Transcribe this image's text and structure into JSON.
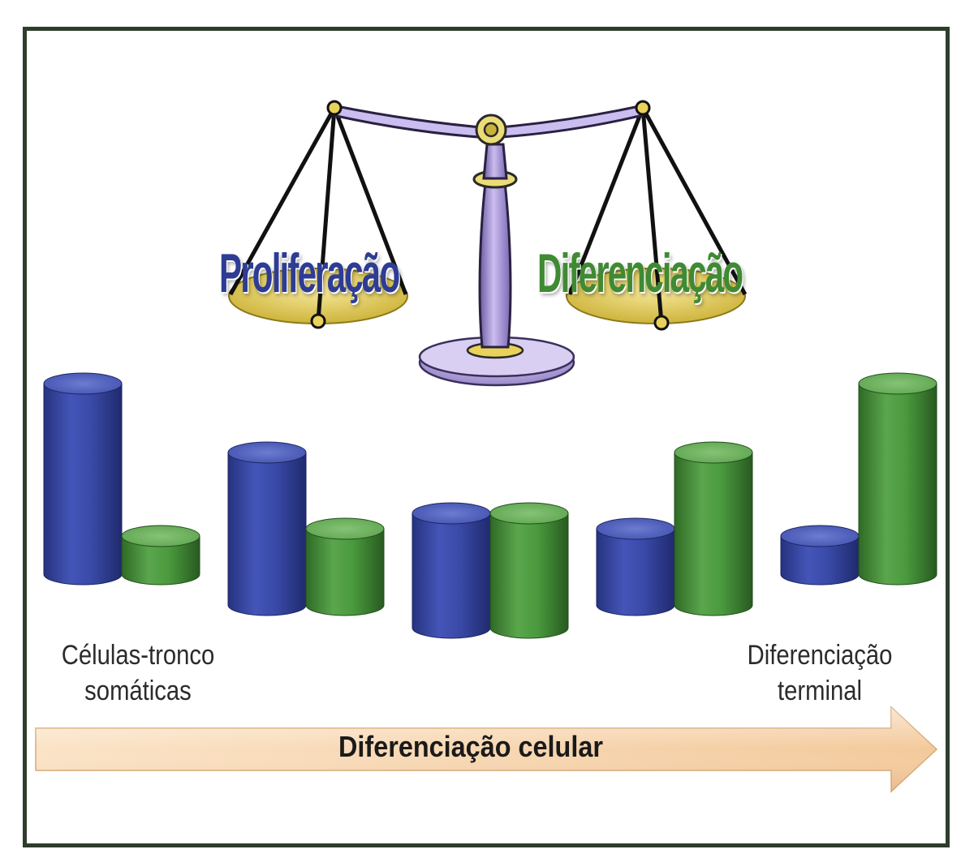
{
  "scale": {
    "left_word": "Proliferação",
    "right_word": "Diferenciação"
  },
  "captions": {
    "left_line1": "Células-tronco",
    "left_line2": "somáticas",
    "right_line1": "Diferenciação",
    "right_line2": "terminal"
  },
  "arrow": {
    "label": "Diferenciação celular"
  },
  "colors": {
    "proliferation": "#3a4aa8",
    "differentiation": "#4a9a3e",
    "arrow": "#f6d3ae",
    "frame": "#2e3d2c"
  },
  "stages": [
    {
      "proliferation": 5,
      "differentiation": 1
    },
    {
      "proliferation": 4,
      "differentiation": 2
    },
    {
      "proliferation": 3,
      "differentiation": 3
    },
    {
      "proliferation": 2,
      "differentiation": 4
    },
    {
      "proliferation": 1,
      "differentiation": 5
    }
  ]
}
